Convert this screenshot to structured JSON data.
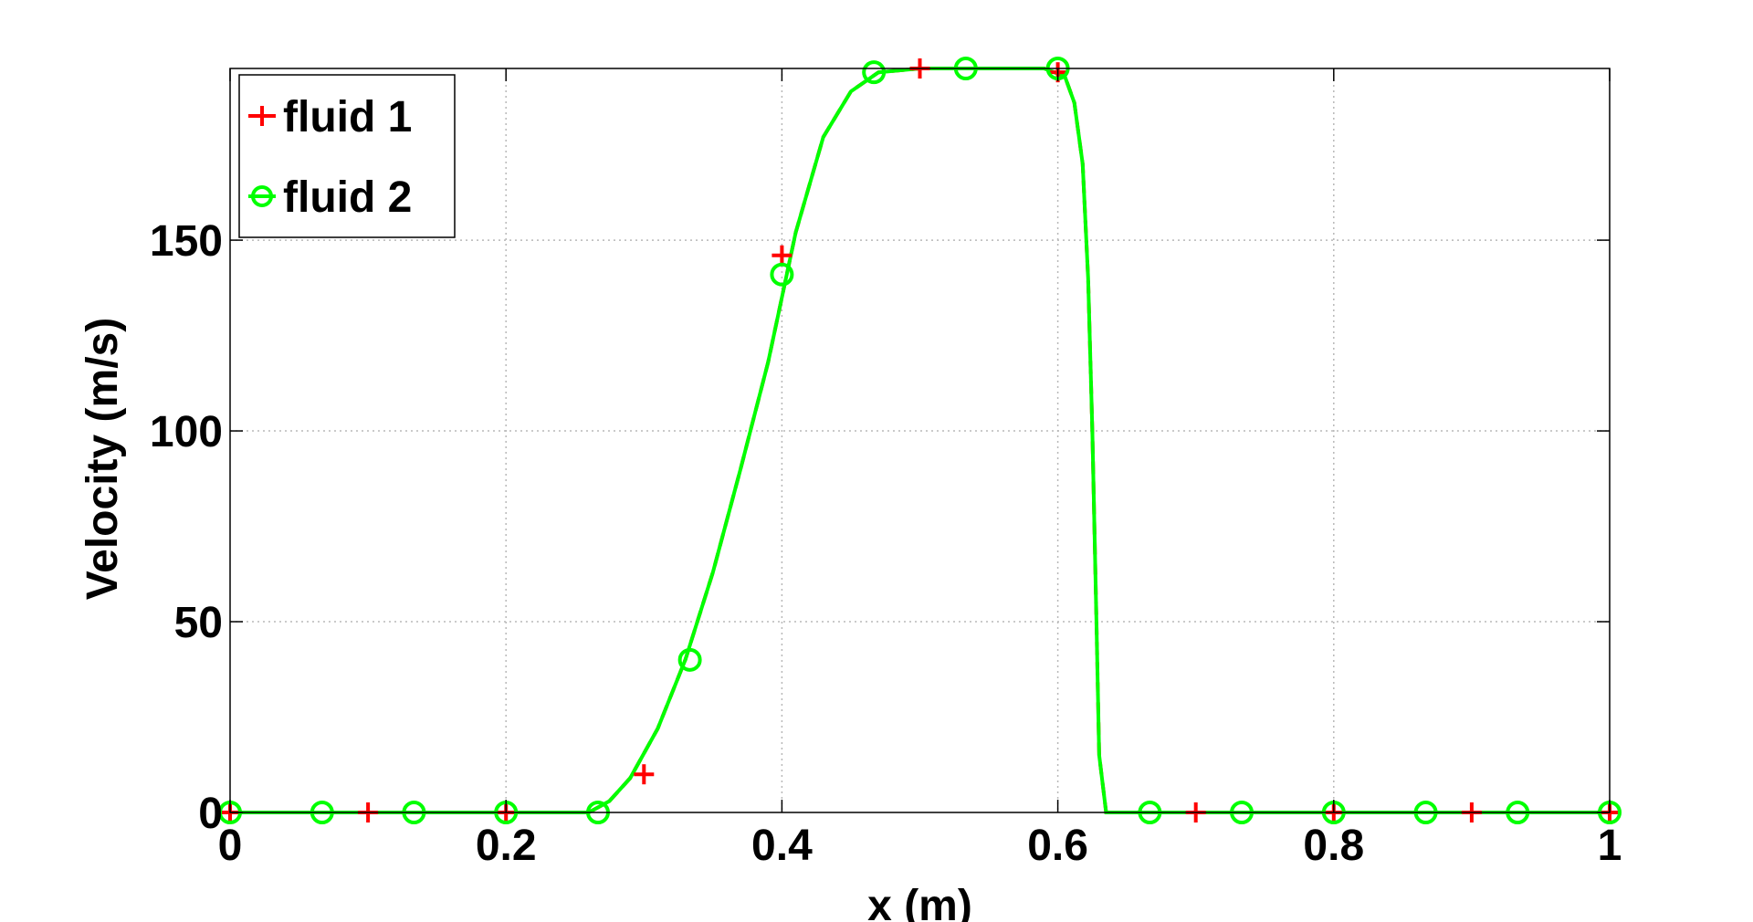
{
  "chart_data": {
    "type": "line",
    "title": "",
    "xlabel": "x (m)",
    "ylabel": "Velocity (m/s)",
    "xlim": [
      0,
      1
    ],
    "ylim": [
      0,
      195
    ],
    "x_ticks": [
      0,
      0.2,
      0.4,
      0.6,
      0.8,
      1
    ],
    "x_tick_labels": [
      "0",
      "0.2",
      "0.4",
      "0.6",
      "0.8",
      "1"
    ],
    "y_ticks": [
      0,
      50,
      100,
      150
    ],
    "y_tick_labels": [
      "0",
      "50",
      "100",
      "150"
    ],
    "grid": true,
    "legend_position": "top-left",
    "curve": {
      "x": [
        0,
        0.26,
        0.275,
        0.29,
        0.31,
        0.33,
        0.35,
        0.37,
        0.39,
        0.41,
        0.43,
        0.45,
        0.47,
        0.5,
        0.55,
        0.59,
        0.605,
        0.612,
        0.618,
        0.622,
        0.625,
        0.628,
        0.63,
        0.635,
        0.7,
        1
      ],
      "y": [
        0,
        0,
        3,
        9,
        22,
        40,
        63,
        90,
        118,
        152,
        177,
        189,
        194,
        195,
        195,
        195,
        193,
        186,
        170,
        140,
        100,
        50,
        15,
        0,
        0,
        0
      ]
    },
    "series": [
      {
        "name": "fluid 1",
        "color": "#ff0000",
        "marker": "plus",
        "x": [
          0,
          0.1,
          0.2,
          0.3,
          0.4,
          0.5,
          0.6,
          0.7,
          0.8,
          0.9,
          1.0
        ],
        "y": [
          0,
          0,
          0,
          10,
          146,
          195,
          194,
          0,
          0,
          0,
          0
        ]
      },
      {
        "name": "fluid 2",
        "color": "#00ff00",
        "marker": "circle",
        "x": [
          0,
          0.0667,
          0.1333,
          0.2,
          0.2667,
          0.3333,
          0.4,
          0.4667,
          0.5333,
          0.6,
          0.6667,
          0.7333,
          0.8,
          0.8667,
          0.9333,
          1.0
        ],
        "y": [
          0,
          0,
          0,
          0,
          0,
          40,
          141,
          194,
          195,
          195,
          0,
          0,
          0,
          0,
          0,
          0
        ]
      }
    ]
  }
}
